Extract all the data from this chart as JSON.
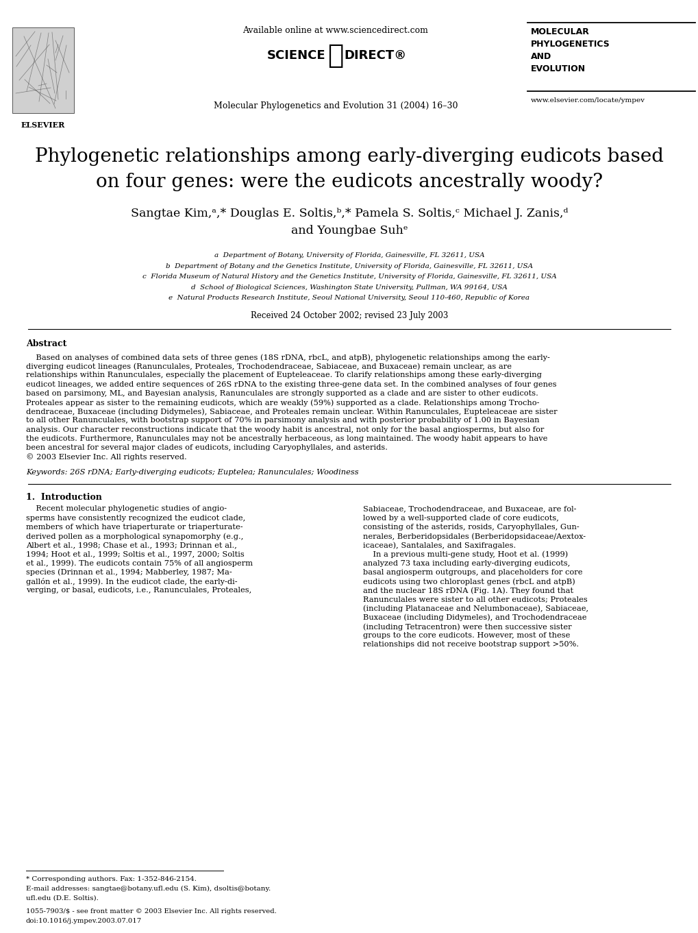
{
  "title_line1": "Phylogenetic relationships among early-diverging eudicots based",
  "title_line2": "on four genes: were the eudicots ancestrally woody?",
  "received_text": "Received 24 October 2002; revised 23 July 2003",
  "journal_header": "Available online at www.sciencedirect.com",
  "journal_name": "Molecular Phylogenetics and Evolution 31 (2004) 16–30",
  "journal_abbreviation": "MOLECULAR\nPHYLOGENETICS\nAND\nEVOLUTION",
  "journal_url": "www.elsevier.com/locate/ympev",
  "abstract_title": "Abstract",
  "keywords_text": "Keywords: 26S rDNA; Early-diverging eudicots; Euptelea; Ranunculales; Woodiness",
  "intro_heading": "1.  Introduction",
  "footnote_corr": "* Corresponding authors. Fax: 1-352-846-2154.",
  "footnote_email": "E-mail addresses: sangtae@botany.ufl.edu (S. Kim), dsoltis@botany.",
  "footnote_email2": "ufl.edu (D.E. Soltis).",
  "bottom_text1": "1055-7903/$ - see front matter © 2003 Elsevier Inc. All rights reserved.",
  "bottom_text2": "doi:10.1016/j.ympev.2003.07.017",
  "bg_color": "#ffffff",
  "text_color": "#000000",
  "abstract_lines": [
    "    Based on analyses of combined data sets of three genes (18S rDNA, rbcL, and atpB), phylogenetic relationships among the early-",
    "diverging eudicot lineages (Ranunculales, Proteales, Trochodendraceae, Sabiaceae, and Buxaceae) remain unclear, as are",
    "relationships within Ranunculales, especially the placement of Eupteleaceae. To clarify relationships among these early-diverging",
    "eudicot lineages, we added entire sequences of 26S rDNA to the existing three-gene data set. In the combined analyses of four genes",
    "based on parsimony, ML, and Bayesian analysis, Ranunculales are strongly supported as a clade and are sister to other eudicots.",
    "Proteales appear as sister to the remaining eudicots, which are weakly (59%) supported as a clade. Relationships among Trocho-",
    "dendraceae, Buxaceae (including Didymeles), Sabiaceae, and Proteales remain unclear. Within Ranunculales, Eupteleaceae are sister",
    "to all other Ranunculales, with bootstrap support of 70% in parsimony analysis and with posterior probability of 1.00 in Bayesian",
    "analysis. Our character reconstructions indicate that the woody habit is ancestral, not only for the basal angiosperms, but also for",
    "the eudicots. Furthermore, Ranunculales may not be ancestrally herbaceous, as long maintained. The woody habit appears to have",
    "been ancestral for several major clades of eudicots, including Caryophyllales, and asterids.",
    "© 2003 Elsevier Inc. All rights reserved."
  ],
  "intro_left_lines": [
    "    Recent molecular phylogenetic studies of angio-",
    "sperms have consistently recognized the eudicot clade,",
    "members of which have triaperturate or triaperturate-",
    "derived pollen as a morphological synapomorphy (e.g.,",
    "Albert et al., 1998; Chase et al., 1993; Drinnan et al.,",
    "1994; Hoot et al., 1999; Soltis et al., 1997, 2000; Soltis",
    "et al., 1999). The eudicots contain 75% of all angiosperm",
    "species (Drinnan et al., 1994; Mabberley, 1987; Ma-",
    "gallón et al., 1999). In the eudicot clade, the early-di-",
    "verging, or basal, eudicots, i.e., Ranunculales, Proteales,"
  ],
  "intro_right_lines": [
    "Sabiaceae, Trochodendraceae, and Buxaceae, are fol-",
    "lowed by a well-supported clade of core eudicots,",
    "consisting of the asterids, rosids, Caryophyllales, Gun-",
    "nerales, Berberidopsidales (Berberidopsidaceae/Aextox-",
    "icaceae), Santalales, and Saxifragales.",
    "    In a previous multi-gene study, Hoot et al. (1999)",
    "analyzed 73 taxa including early-diverging eudicots,",
    "basal angiosperm outgroups, and placeholders for core",
    "eudicots using two chloroplast genes (rbcL and atpB)",
    "and the nuclear 18S rDNA (Fig. 1A). They found that",
    "Ranunculales were sister to all other eudicots; Proteales",
    "(including Platanaceae and Nelumbonaceae), Sabiaceae,",
    "Buxaceae (including Didymeles), and Trochodendraceae",
    "(including Tetracentron) were then successive sister",
    "groups to the core eudicots. However, most of these",
    "relationships did not receive bootstrap support >50%."
  ],
  "affil_lines": [
    "a  Department of Botany, University of Florida, Gainesville, FL 32611, USA",
    "b  Department of Botany and the Genetics Institute, University of Florida, Gainesville, FL 32611, USA",
    "c  Florida Museum of Natural History and the Genetics Institute, University of Florida, Gainesville, FL 32611, USA",
    "d  School of Biological Sciences, Washington State University, Pullman, WA 99164, USA",
    "e  Natural Products Research Institute, Seoul National University, Seoul 110-460, Republic of Korea"
  ]
}
